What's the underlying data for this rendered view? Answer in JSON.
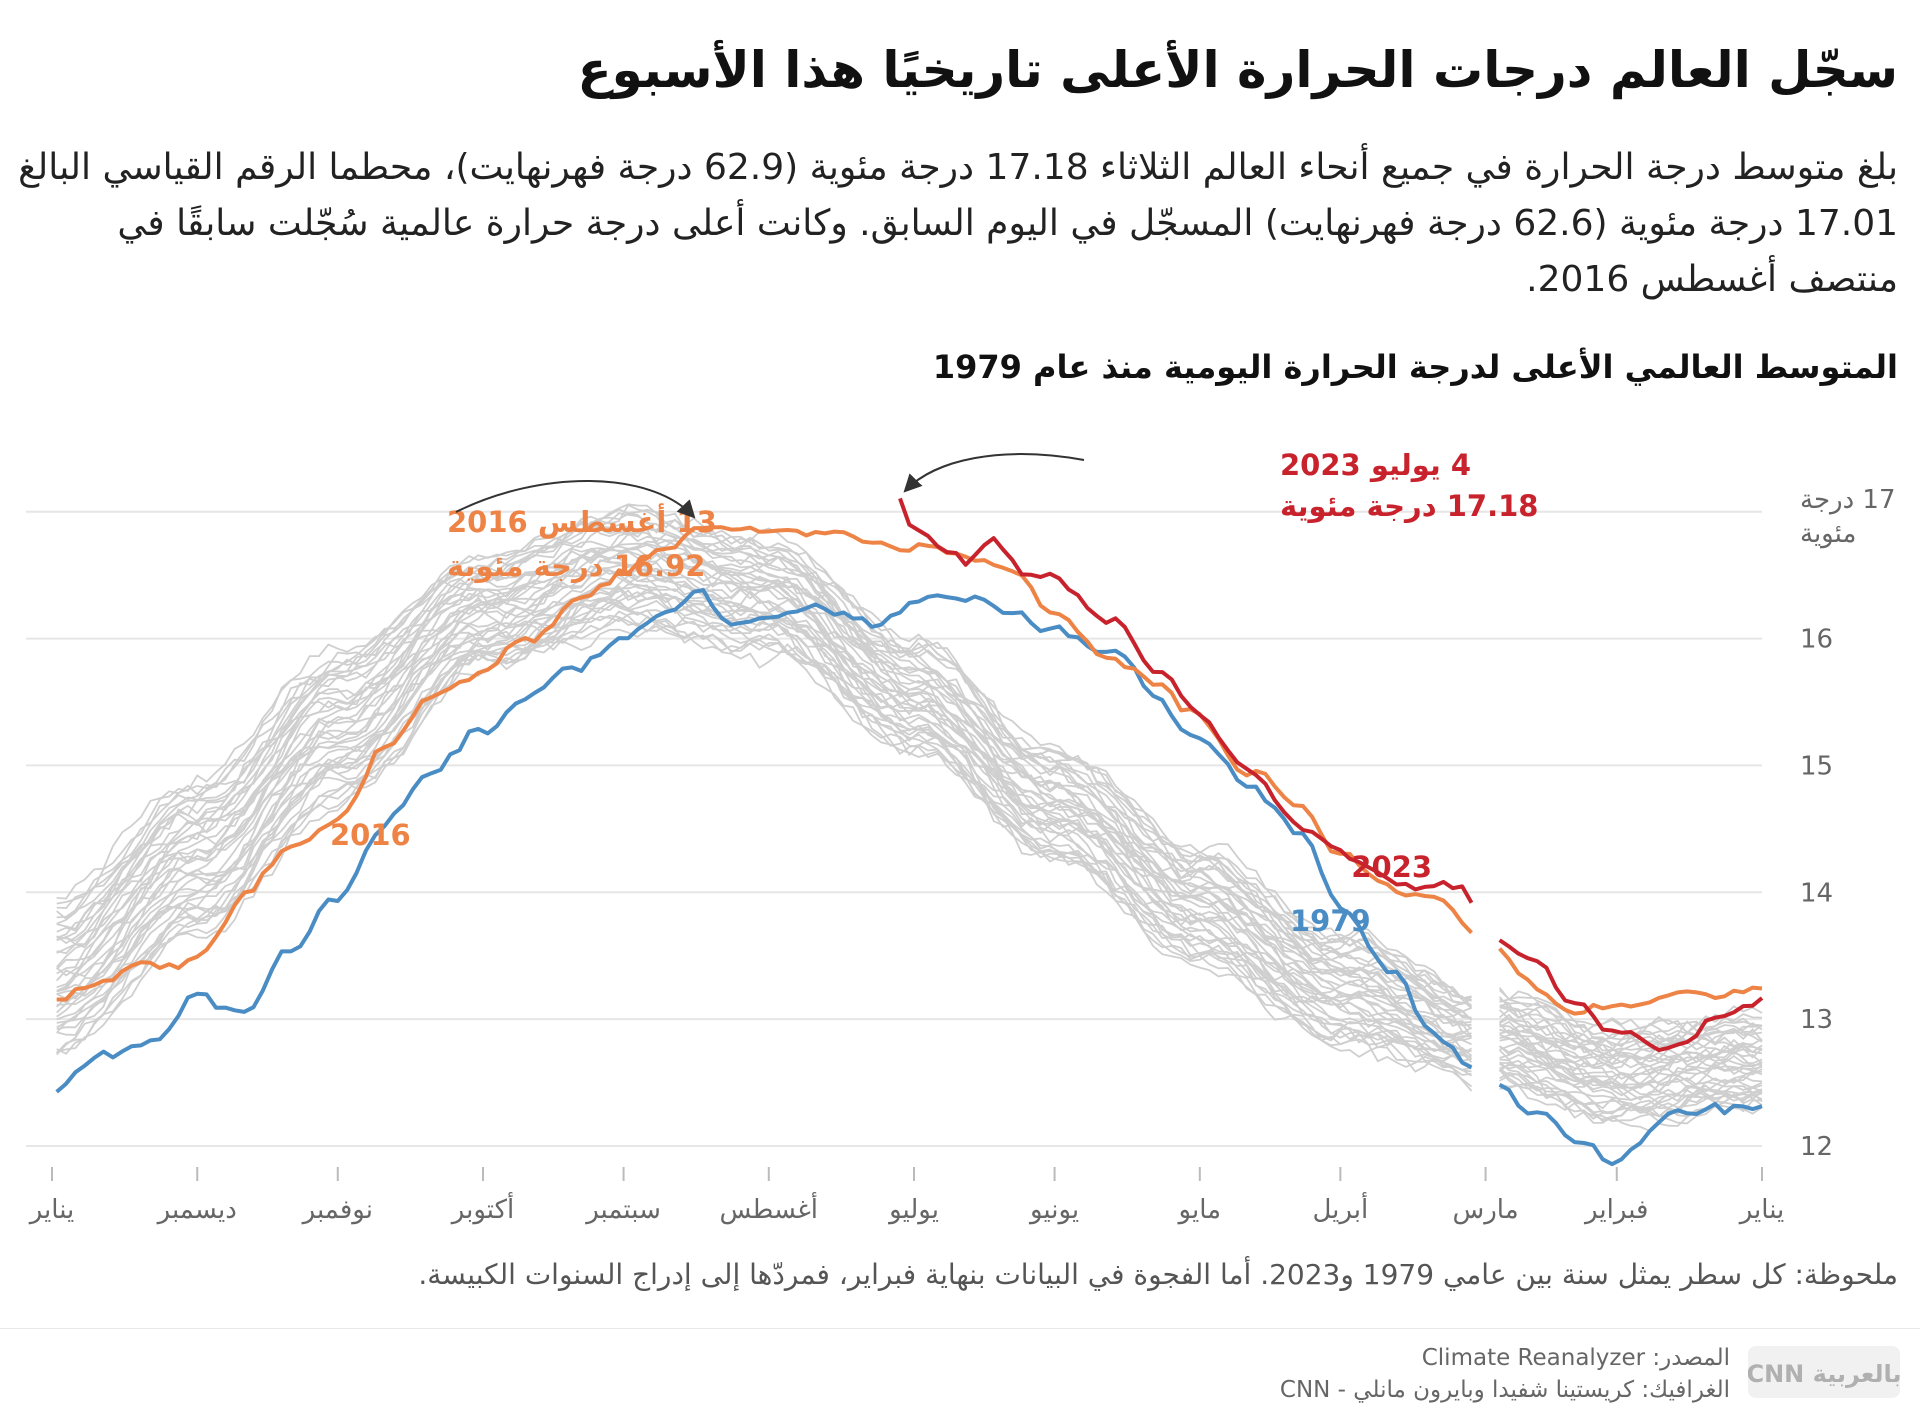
{
  "title": "سجّل العالم درجات الحرارة الأعلى تاريخيًا هذا الأسبوع",
  "description": "بلغ متوسط درجة الحرارة في جميع أنحاء العالم الثلاثاء 17.18 درجة مئوية (62.9 درجة فهرنهايت)، محطما الرقم القياسي البالغ 17.01 درجة مئوية (62.6 درجة فهرنهايت) المسجّل في اليوم السابق. وكانت أعلى درجة حرارة عالمية سُجّلت سابقًا في منتصف أغسطس 2016.",
  "note": "ملحوظة: كل سطر يمثل سنة بين عامي 1979 و2023. أما الفجوة في البيانات بنهاية فبراير، فمردّها إلى إدراج السنوات الكبيسة.",
  "source": {
    "source_line": "المصدر: Climate Reanalyzer",
    "graphic_line": "الغرافيك: كريستينا شفيدا وبايرون مانلي - CNN",
    "logo_text": "بالعربية CNN"
  },
  "colors": {
    "y2016": "#ee8346",
    "y2023": "#c8232c",
    "y1979": "#4a8cc4",
    "other_years": "#cfcfcf",
    "grid": "#e6e6e6"
  },
  "chart_data": {
    "type": "line",
    "title": "المتوسط العالمي الأعلى لدرجة الحرارة اليومية منذ عام 1979",
    "ylabel": "17 درجة مئوية",
    "y_unit_line1": "17 درجة",
    "y_unit_line2": "مئوية",
    "ylim": [
      11.85,
      17.25
    ],
    "y_ticks": [
      "12",
      "13",
      "14",
      "15",
      "16"
    ],
    "x_axis_direction": "right-to-left",
    "x_ticks": [
      "يناير",
      "فبراير",
      "مارس",
      "أبريل",
      "مايو",
      "يونيو",
      "يوليو",
      "أغسطس",
      "سبتمبر",
      "أكتوبر",
      "نوفمبر",
      "ديسمبر",
      "يناير"
    ],
    "x_tick_days": [
      1,
      32,
      60,
      91,
      121,
      152,
      182,
      213,
      244,
      274,
      305,
      335,
      366
    ],
    "xlim": [
      1,
      366
    ],
    "grid": true,
    "legend": "none",
    "series": [
      {
        "name": "2016",
        "x": [
          1,
          10,
          20,
          32,
          40,
          50,
          60,
          70,
          80,
          91,
          100,
          110,
          121,
          130,
          140,
          152,
          160,
          170,
          182,
          190,
          200,
          213,
          220,
          226,
          235,
          244,
          255,
          265,
          274,
          285,
          295,
          305,
          315,
          325,
          335,
          345,
          355,
          366
        ],
        "y": [
          13.25,
          13.2,
          13.28,
          13.12,
          13.05,
          13.25,
          13.6,
          13.95,
          14.0,
          14.3,
          14.65,
          14.95,
          15.35,
          15.6,
          15.85,
          16.2,
          16.5,
          16.62,
          16.72,
          16.75,
          16.8,
          16.85,
          16.85,
          16.92,
          16.72,
          16.5,
          16.25,
          16.0,
          15.75,
          15.55,
          15.1,
          14.55,
          14.35,
          13.95,
          13.48,
          13.45,
          13.3,
          13.15
        ]
      },
      {
        "name": "2023",
        "x": [
          1,
          10,
          20,
          32,
          40,
          50,
          60,
          65,
          70,
          80,
          91,
          100,
          110,
          121,
          130,
          140,
          152,
          158,
          165,
          170,
          175,
          182,
          186
        ],
        "y": [
          13.15,
          13.05,
          12.75,
          12.9,
          13.05,
          13.45,
          13.72,
          14.0,
          14.05,
          14.1,
          14.3,
          14.55,
          15.0,
          15.35,
          15.75,
          16.15,
          16.45,
          16.5,
          16.78,
          16.62,
          16.68,
          16.88,
          17.18
        ]
      },
      {
        "name": "1979",
        "x": [
          1,
          10,
          20,
          32,
          40,
          50,
          60,
          70,
          80,
          91,
          100,
          110,
          121,
          130,
          140,
          152,
          160,
          170,
          182,
          190,
          200,
          213,
          220,
          228,
          235,
          244,
          255,
          265,
          274,
          285,
          295,
          305,
          315,
          325,
          335,
          345,
          355,
          366
        ],
        "y": [
          12.3,
          12.3,
          12.25,
          11.9,
          12.05,
          12.3,
          12.52,
          12.85,
          13.4,
          13.9,
          14.45,
          14.85,
          15.2,
          15.55,
          15.9,
          16.1,
          16.2,
          16.35,
          16.3,
          16.15,
          16.25,
          16.15,
          16.15,
          16.42,
          16.3,
          16.0,
          15.75,
          15.55,
          15.3,
          14.95,
          14.5,
          14.0,
          13.6,
          13.05,
          13.2,
          12.8,
          12.72,
          12.38
        ]
      }
    ],
    "annotations": [
      {
        "series": "2016",
        "line1": "13  أغسطس 2016",
        "line2": "16.92  درجة مئوية",
        "x": 226,
        "y": 16.92
      },
      {
        "series": "2023",
        "line1": "4  يوليو 2023",
        "line2": "17.18  درجة مئوية",
        "x": 186,
        "y": 17.18
      }
    ],
    "series_labels": [
      {
        "series": "2016",
        "text": "2016"
      },
      {
        "series": "2023",
        "text": "2023"
      },
      {
        "series": "1979",
        "text": "1979"
      }
    ]
  }
}
